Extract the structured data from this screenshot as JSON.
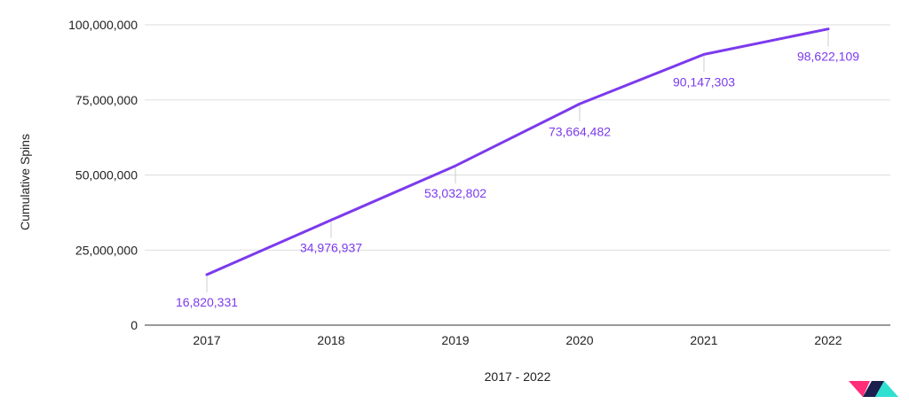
{
  "chart_data": {
    "type": "line",
    "x": [
      "2017",
      "2018",
      "2019",
      "2020",
      "2021",
      "2022"
    ],
    "series": [
      {
        "values": [
          16820331,
          34976937,
          53032802,
          73664482,
          90147303,
          98622109
        ],
        "data_labels": [
          "16,820,331",
          "34,976,937",
          "53,032,802",
          "73,664,482",
          "90,147,303",
          "98,622,109"
        ]
      }
    ],
    "xlabel": "2017 - 2022",
    "ylabel": "Cumulative Spins",
    "ylim": [
      0,
      100000000
    ],
    "yticks": [
      {
        "value": 0,
        "label": "0"
      },
      {
        "value": 25000000,
        "label": "25,000,000"
      },
      {
        "value": 50000000,
        "label": "50,000,000"
      },
      {
        "value": 75000000,
        "label": "75,000,000"
      },
      {
        "value": 100000000,
        "label": "100,000,000"
      }
    ],
    "grid": true,
    "legend": "none",
    "colors": {
      "line": "#7c3aed",
      "grid": "#dddddd",
      "axis": "#333333",
      "leader": "#cccccc"
    }
  },
  "logo": {
    "colors": {
      "pink": "#ff2d7a",
      "navy": "#1a1f4d",
      "teal": "#2de0d0"
    }
  }
}
